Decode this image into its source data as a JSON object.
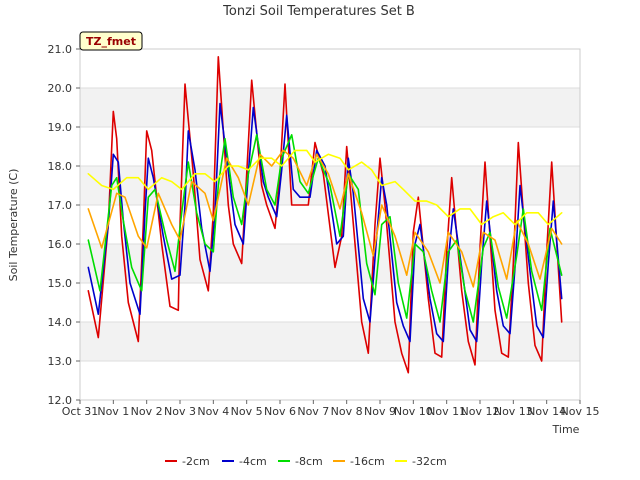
{
  "chart_data": {
    "type": "line",
    "title": "Tonzi Soil Temperatures Set B",
    "xlabel": "Time",
    "ylabel": "Soil Temperature (C)",
    "badge": "TZ_fmet",
    "ylim": [
      12.0,
      21.0
    ],
    "xlim": [
      0,
      15
    ],
    "yticks": [
      "12.0",
      "13.0",
      "14.0",
      "15.0",
      "16.0",
      "17.0",
      "18.0",
      "19.0",
      "20.0",
      "21.0"
    ],
    "xticks": [
      "Oct 31",
      "Nov 1",
      "Nov 2",
      "Nov 3",
      "Nov 4",
      "Nov 5",
      "Nov 6",
      "Nov 7",
      "Nov 8",
      "Nov 9",
      "Nov 10",
      "Nov 11",
      "Nov 12",
      "Nov 13",
      "Nov 14",
      "Nov 15"
    ],
    "grid": "horizontal bands",
    "legend_position": "bottom",
    "series": [
      {
        "name": "-2cm",
        "color": "#dd0000",
        "x": [
          0.25,
          0.55,
          0.85,
          1.0,
          1.1,
          1.25,
          1.45,
          1.75,
          1.9,
          2.0,
          2.15,
          2.45,
          2.7,
          2.95,
          3.0,
          3.15,
          3.4,
          3.6,
          3.85,
          4.0,
          4.15,
          4.45,
          4.6,
          4.85,
          5.0,
          5.15,
          5.45,
          5.6,
          5.85,
          6.0,
          6.15,
          6.35,
          6.55,
          6.85,
          7.05,
          7.3,
          7.65,
          7.85,
          8.0,
          8.15,
          8.45,
          8.65,
          8.85,
          9.0,
          9.15,
          9.45,
          9.65,
          9.85,
          10.0,
          10.15,
          10.45,
          10.65,
          10.85,
          11.0,
          11.15,
          11.45,
          11.65,
          11.85,
          12.0,
          12.15,
          12.45,
          12.65,
          12.85,
          13.0,
          13.15,
          13.45,
          13.65,
          13.85,
          14.0,
          14.15,
          14.45
        ],
        "values": [
          14.8,
          13.6,
          16.5,
          19.4,
          18.7,
          16.2,
          14.5,
          13.5,
          16.5,
          18.9,
          18.4,
          16.0,
          14.4,
          14.3,
          16.5,
          20.1,
          17.8,
          15.6,
          14.8,
          16.8,
          20.8,
          17.0,
          16.0,
          15.5,
          17.8,
          20.2,
          17.5,
          17.0,
          16.4,
          17.8,
          20.1,
          17.0,
          17.0,
          17.0,
          18.6,
          17.8,
          15.4,
          16.2,
          18.5,
          17.0,
          14.0,
          13.2,
          16.5,
          18.2,
          17.0,
          14.0,
          13.2,
          12.7,
          16.3,
          17.2,
          14.6,
          13.2,
          13.1,
          15.8,
          17.7,
          14.8,
          13.5,
          12.9,
          15.9,
          18.1,
          14.3,
          13.2,
          13.1,
          15.5,
          18.6,
          15.0,
          13.4,
          13.0,
          15.8,
          18.1,
          14.0
        ]
      },
      {
        "name": "-4cm",
        "color": "#0000cc",
        "x": [
          0.25,
          0.55,
          0.85,
          1.0,
          1.15,
          1.3,
          1.5,
          1.8,
          1.95,
          2.05,
          2.2,
          2.5,
          2.75,
          3.0,
          3.15,
          3.25,
          3.45,
          3.65,
          3.9,
          4.05,
          4.2,
          4.5,
          4.65,
          4.9,
          5.05,
          5.2,
          5.5,
          5.65,
          5.9,
          6.05,
          6.2,
          6.4,
          6.6,
          6.9,
          7.1,
          7.35,
          7.7,
          7.9,
          8.05,
          8.2,
          8.5,
          8.7,
          8.9,
          9.05,
          9.2,
          9.5,
          9.7,
          9.9,
          10.05,
          10.2,
          10.5,
          10.7,
          10.9,
          11.05,
          11.2,
          11.5,
          11.7,
          11.9,
          12.05,
          12.2,
          12.5,
          12.7,
          12.9,
          13.05,
          13.2,
          13.5,
          13.7,
          13.9,
          14.05,
          14.2,
          14.45
        ],
        "values": [
          15.4,
          14.2,
          16.5,
          18.3,
          18.1,
          16.6,
          15.0,
          14.2,
          16.8,
          18.2,
          17.7,
          16.2,
          15.1,
          15.2,
          17.0,
          18.9,
          17.9,
          16.4,
          15.3,
          16.8,
          19.6,
          17.5,
          16.5,
          16.0,
          17.8,
          19.5,
          17.6,
          17.2,
          16.7,
          17.9,
          19.3,
          17.4,
          17.2,
          17.2,
          18.4,
          18.0,
          16.0,
          16.2,
          18.2,
          17.3,
          14.6,
          14.0,
          16.2,
          17.7,
          17.0,
          14.5,
          13.9,
          13.5,
          16.0,
          16.5,
          14.6,
          13.7,
          13.5,
          15.6,
          16.9,
          15.1,
          13.8,
          13.5,
          15.5,
          17.1,
          14.8,
          13.9,
          13.7,
          15.4,
          17.5,
          15.3,
          13.9,
          13.6,
          15.5,
          17.1,
          14.6
        ]
      },
      {
        "name": "-8cm",
        "color": "#00dd00",
        "x": [
          0.25,
          0.6,
          0.95,
          1.1,
          1.3,
          1.55,
          1.85,
          2.05,
          2.25,
          2.6,
          2.85,
          3.05,
          3.25,
          3.5,
          3.75,
          4.0,
          4.15,
          4.35,
          4.6,
          4.85,
          5.05,
          5.3,
          5.6,
          5.85,
          6.05,
          6.35,
          6.6,
          6.85,
          7.15,
          7.5,
          7.8,
          8.05,
          8.35,
          8.6,
          8.85,
          9.05,
          9.3,
          9.55,
          9.8,
          10.05,
          10.3,
          10.55,
          10.8,
          11.05,
          11.3,
          11.55,
          11.8,
          12.1,
          12.3,
          12.55,
          12.8,
          13.1,
          13.3,
          13.55,
          13.85,
          14.1,
          14.45
        ],
        "values": [
          16.1,
          14.8,
          17.5,
          17.7,
          16.6,
          15.4,
          14.8,
          17.2,
          17.4,
          16.1,
          15.3,
          16.8,
          18.1,
          16.8,
          16.0,
          15.8,
          17.5,
          18.7,
          17.2,
          16.5,
          17.8,
          18.8,
          17.4,
          17.0,
          18.2,
          18.8,
          17.6,
          17.3,
          18.2,
          17.5,
          16.2,
          17.8,
          17.4,
          15.5,
          14.7,
          16.5,
          16.7,
          15.0,
          14.1,
          16.0,
          15.8,
          14.8,
          14.0,
          15.8,
          16.1,
          14.8,
          14.0,
          15.9,
          16.3,
          14.9,
          14.1,
          15.7,
          16.9,
          15.3,
          14.3,
          16.4,
          15.2
        ]
      },
      {
        "name": "-16cm",
        "color": "#ffa500",
        "x": [
          0.25,
          0.65,
          1.1,
          1.35,
          1.75,
          2.0,
          2.35,
          2.75,
          3.0,
          3.35,
          3.75,
          4.0,
          4.4,
          4.75,
          5.05,
          5.4,
          5.75,
          6.1,
          6.4,
          6.8,
          7.1,
          7.45,
          7.8,
          8.05,
          8.45,
          8.8,
          9.05,
          9.45,
          9.8,
          10.05,
          10.45,
          10.8,
          11.05,
          11.45,
          11.8,
          12.1,
          12.45,
          12.8,
          13.1,
          13.45,
          13.8,
          14.15,
          14.45
        ],
        "values": [
          16.9,
          15.9,
          17.3,
          17.2,
          16.2,
          15.9,
          17.3,
          16.5,
          16.1,
          17.6,
          17.3,
          16.6,
          18.2,
          17.7,
          17.0,
          18.3,
          18.0,
          18.4,
          18.2,
          17.5,
          18.3,
          17.8,
          16.9,
          17.8,
          16.8,
          15.7,
          17.0,
          16.2,
          15.2,
          16.3,
          15.8,
          15.0,
          16.3,
          15.8,
          14.9,
          16.3,
          16.1,
          15.1,
          16.6,
          16.0,
          15.1,
          16.4,
          16.0
        ]
      },
      {
        "name": "-32cm",
        "color": "#ffff00",
        "x": [
          0.25,
          0.65,
          1.0,
          1.4,
          1.75,
          2.05,
          2.45,
          2.75,
          3.05,
          3.45,
          3.75,
          4.05,
          4.45,
          4.75,
          5.05,
          5.4,
          5.75,
          6.05,
          6.45,
          6.8,
          7.05,
          7.45,
          7.8,
          8.05,
          8.45,
          8.75,
          9.05,
          9.45,
          9.7,
          10.05,
          10.4,
          10.7,
          11.05,
          11.4,
          11.7,
          12.05,
          12.4,
          12.7,
          13.05,
          13.4,
          13.75,
          14.05,
          14.45
        ],
        "values": [
          17.8,
          17.5,
          17.4,
          17.7,
          17.7,
          17.4,
          17.7,
          17.6,
          17.4,
          17.8,
          17.8,
          17.6,
          18.0,
          18.0,
          17.9,
          18.2,
          18.2,
          18.0,
          18.4,
          18.4,
          18.1,
          18.3,
          18.2,
          17.9,
          18.1,
          17.9,
          17.5,
          17.6,
          17.4,
          17.1,
          17.1,
          17.0,
          16.7,
          16.9,
          16.9,
          16.5,
          16.7,
          16.8,
          16.5,
          16.8,
          16.8,
          16.5,
          16.8
        ]
      }
    ]
  }
}
